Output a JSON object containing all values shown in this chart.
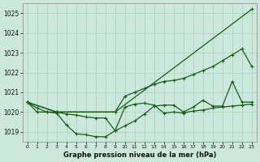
{
  "title": "Graphe pression niveau de la mer (hPa)",
  "background_color": "#cce8dc",
  "grid_color": "#aacfbf",
  "line_color": "#1a5c1a",
  "xlim": [
    -0.5,
    23.5
  ],
  "ylim": [
    1018.5,
    1025.5
  ],
  "xticks": [
    0,
    1,
    2,
    3,
    4,
    5,
    6,
    7,
    8,
    9,
    10,
    11,
    12,
    13,
    14,
    15,
    16,
    17,
    18,
    19,
    20,
    21,
    22,
    23
  ],
  "yticks": [
    1019,
    1020,
    1021,
    1022,
    1023,
    1024,
    1025
  ],
  "line1_x": [
    0,
    1,
    2,
    3,
    4,
    5,
    6,
    7,
    8,
    9,
    10,
    11,
    12,
    13,
    14,
    15,
    16,
    17,
    18,
    19,
    20,
    21,
    22,
    23
  ],
  "line1_y": [
    1020.5,
    1020.2,
    1020.0,
    1020.0,
    1019.9,
    1019.85,
    1019.75,
    1019.7,
    1019.7,
    1019.05,
    1020.25,
    1020.4,
    1020.45,
    1020.35,
    1019.95,
    1020.0,
    1019.95,
    1020.05,
    1020.1,
    1020.2,
    1020.25,
    1020.3,
    1020.35,
    1020.4
  ],
  "line2_x": [
    0,
    1,
    2,
    3,
    4,
    5,
    6,
    7,
    8,
    9,
    10,
    11,
    12,
    13,
    14,
    15,
    16,
    17,
    18,
    19,
    20,
    21,
    22,
    23
  ],
  "line2_y": [
    1020.5,
    1020.0,
    1020.0,
    1019.95,
    1019.35,
    1018.9,
    1018.85,
    1018.75,
    1018.75,
    1019.05,
    1019.3,
    1019.55,
    1019.9,
    1020.3,
    1020.35,
    1020.35,
    1020.0,
    1020.25,
    1020.6,
    1020.3,
    1020.3,
    1021.55,
    1020.5,
    1020.5
  ],
  "line3_x": [
    0,
    3,
    9,
    10,
    11,
    12,
    13,
    14,
    15,
    16,
    17,
    18,
    19,
    20,
    21,
    22,
    23
  ],
  "line3_y": [
    1020.5,
    1020.0,
    1020.0,
    1020.8,
    1021.0,
    1021.2,
    1021.4,
    1021.55,
    1021.6,
    1021.7,
    1021.9,
    1022.1,
    1022.3,
    1022.6,
    1022.9,
    1023.2,
    1022.3
  ],
  "line4_x": [
    0,
    3,
    9,
    23
  ],
  "line4_y": [
    1020.5,
    1020.0,
    1020.0,
    1025.2
  ]
}
